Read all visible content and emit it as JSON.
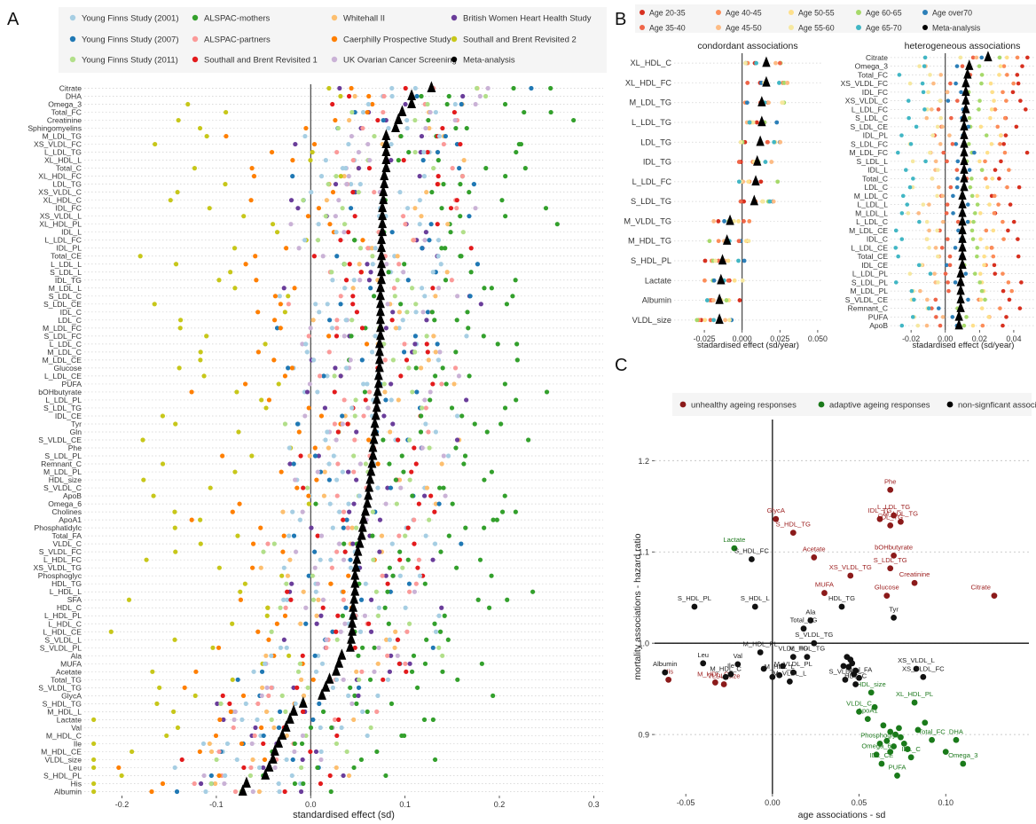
{
  "chart_data": [
    {
      "panel": "A",
      "type": "scatter",
      "xlabel": "standardised effect (sd)",
      "ylabel": "",
      "xlim": [
        -0.24,
        0.31
      ],
      "xticks": [
        -0.2,
        -0.1,
        0.0,
        0.1,
        0.2,
        0.3
      ],
      "xtick_labels": [
        "-0.2",
        "-0.1",
        "0.0",
        "0.1",
        "0.2",
        "0.3"
      ],
      "legend_position": "top",
      "legend": [
        {
          "name": "Young Finns Study (2001)",
          "color": "#a6cee3"
        },
        {
          "name": "ALSPAC-mothers",
          "color": "#33a02c"
        },
        {
          "name": "Whitehall II",
          "color": "#fdbf6f"
        },
        {
          "name": "British Women Heart Health Study",
          "color": "#6a3d9a"
        },
        {
          "name": "Young Finns Study (2007)",
          "color": "#1f78b4"
        },
        {
          "name": "ALSPAC-partners",
          "color": "#fb9a99"
        },
        {
          "name": "Caerphilly Prospective Study",
          "color": "#ff7f00"
        },
        {
          "name": "Southall and Brent Revisited 2",
          "color": "#c7c71a"
        },
        {
          "name": "Young Finns Study (2011)",
          "color": "#b2df8a"
        },
        {
          "name": "Southall and Brent Revisited 1",
          "color": "#e31a1c"
        },
        {
          "name": "UK Ovarian Cancer Screening",
          "color": "#cab2d6"
        },
        {
          "name": "Meta-analysis",
          "color": "#000000"
        }
      ],
      "categories": [
        "Citrate",
        "DHA",
        "Omega_3",
        "Total_FC",
        "Creatinine",
        "Sphingomyelins",
        "M_LDL_TG",
        "XS_VLDL_FC",
        "L_LDL_TG",
        "XL_HDL_L",
        "Total_C",
        "XL_HDL_FC",
        "LDL_TG",
        "XS_VLDL_C",
        "XL_HDL_C",
        "IDL_FC",
        "XS_VLDL_L",
        "XL_HDL_PL",
        "IDL_L",
        "L_LDL_FC",
        "IDL_PL",
        "Total_CE",
        "L_LDL_L",
        "S_LDL_L",
        "IDL_TG",
        "M_LDL_L",
        "S_LDL_C",
        "S_LDL_CE",
        "IDL_C",
        "LDL_C",
        "M_LDL_FC",
        "S_LDL_FC",
        "L_LDL_C",
        "M_LDL_C",
        "M_LDL_CE",
        "Glucose",
        "L_LDL_CE",
        "PUFA",
        "bOHbutyrate",
        "L_LDL_PL",
        "S_LDL_TG",
        "IDL_CE",
        "Tyr",
        "Gln",
        "S_VLDL_CE",
        "Phe",
        "S_LDL_PL",
        "Remnant_C",
        "M_LDL_PL",
        "HDL_size",
        "S_VLDL_C",
        "ApoB",
        "Omega_6",
        "Cholines",
        "ApoA1",
        "Phosphatidylc",
        "Total_FA",
        "VLDL_C",
        "S_VLDL_FC",
        "L_HDL_FC",
        "XS_VLDL_TG",
        "Phosphoglyc",
        "HDL_TG",
        "L_HDL_L",
        "SFA",
        "HDL_C",
        "L_HDL_PL",
        "L_HDL_C",
        "L_HDL_CE",
        "S_VLDL_L",
        "S_VLDL_PL",
        "Ala",
        "MUFA",
        "Acetate",
        "Total_TG",
        "S_VLDL_TG",
        "GlycA",
        "S_HDL_TG",
        "M_HDL_L",
        "Lactate",
        "Val",
        "M_HDL_C",
        "Ile",
        "M_HDL_CE",
        "VLDL_size",
        "Leu",
        "S_HDL_PL",
        "His",
        "Albumin"
      ],
      "meta_analysis": [
        0.128,
        0.107,
        0.107,
        0.097,
        0.093,
        0.09,
        0.08,
        0.08,
        0.08,
        0.08,
        0.08,
        0.078,
        0.078,
        0.077,
        0.077,
        0.076,
        0.076,
        0.076,
        0.076,
        0.075,
        0.075,
        0.075,
        0.075,
        0.075,
        0.075,
        0.074,
        0.074,
        0.074,
        0.074,
        0.074,
        0.074,
        0.074,
        0.073,
        0.073,
        0.073,
        0.073,
        0.072,
        0.072,
        0.071,
        0.07,
        0.07,
        0.069,
        0.068,
        0.068,
        0.067,
        0.066,
        0.066,
        0.065,
        0.064,
        0.063,
        0.062,
        0.061,
        0.06,
        0.058,
        0.056,
        0.055,
        0.054,
        0.052,
        0.05,
        0.049,
        0.048,
        0.047,
        0.047,
        0.047,
        0.046,
        0.045,
        0.045,
        0.044,
        0.044,
        0.043,
        0.042,
        0.033,
        0.03,
        0.027,
        0.02,
        0.016,
        0.012,
        -0.008,
        -0.018,
        -0.022,
        -0.026,
        -0.03,
        -0.034,
        -0.038,
        -0.04,
        -0.044,
        -0.048,
        -0.068,
        -0.072
      ]
    },
    {
      "panel": "B",
      "type": "scatter",
      "legend_position": "top",
      "legend": [
        {
          "name": "Age 20-35",
          "color": "#d7301f"
        },
        {
          "name": "Age 40-45",
          "color": "#fc8d59"
        },
        {
          "name": "Age 50-55",
          "color": "#fee08b"
        },
        {
          "name": "Age 60-65",
          "color": "#a6d96a"
        },
        {
          "name": "Age over70",
          "color": "#2c7fb8"
        },
        {
          "name": "Age 35-40",
          "color": "#ef6548"
        },
        {
          "name": "Age 45-50",
          "color": "#fdbb84"
        },
        {
          "name": "Age 55-60",
          "color": "#f6e8a0"
        },
        {
          "name": "Age 65-70",
          "color": "#41b6c4"
        },
        {
          "name": "Meta-analysis",
          "color": "#000000"
        }
      ],
      "subplots": [
        {
          "title": "condordant associations",
          "xlabel": "stadardised effect (sd/year)",
          "xlim": [
            -0.045,
            0.053
          ],
          "xticks": [
            -0.025,
            0.0,
            0.025,
            0.05
          ],
          "xtick_labels": [
            "-0.025",
            "0.000",
            "0.025",
            "0.050"
          ],
          "categories": [
            "XL_HDL_C",
            "XL_HDL_FC",
            "M_LDL_TG",
            "L_LDL_TG",
            "LDL_TG",
            "IDL_TG",
            "L_LDL_FC",
            "S_LDL_TG",
            "M_VLDL_TG",
            "M_HDL_TG",
            "S_HDL_PL",
            "Lactate",
            "Albumin",
            "VLDL_size"
          ],
          "meta_analysis": [
            0.016,
            0.016,
            0.013,
            0.013,
            0.012,
            0.01,
            0.009,
            0.008,
            -0.008,
            -0.01,
            -0.013,
            -0.014,
            -0.015,
            -0.015
          ]
        },
        {
          "title": "heterogeneous associations",
          "xlabel": "stadardised effect (sd/year)",
          "xlim": [
            -0.032,
            0.053
          ],
          "xticks": [
            -0.02,
            0.0,
            0.02,
            0.04
          ],
          "xtick_labels": [
            "-0.02",
            "0.00",
            "0.02",
            "0.04"
          ],
          "categories": [
            "Citrate",
            "Omega_3",
            "Total_FC",
            "XS_VLDL_FC",
            "IDL_FC",
            "XS_VLDL_C",
            "L_LDL_FC",
            "S_LDL_C",
            "S_LDL_CE",
            "IDL_PL",
            "S_LDL_FC",
            "M_LDL_FC",
            "S_LDL_L",
            "IDL_L",
            "Total_C",
            "LDL_C",
            "M_LDL_C",
            "L_LDL_L",
            "M_LDL_L",
            "L_LDL_C",
            "M_LDL_CE",
            "IDL_C",
            "L_LDL_CE",
            "Total_CE",
            "IDL_CE",
            "L_LDL_PL",
            "S_LDL_PL",
            "M_LDL_PL",
            "S_VLDL_CE",
            "Remnant_C",
            "PUFA",
            "ApoB"
          ],
          "meta_analysis": [
            0.025,
            0.014,
            0.013,
            0.012,
            0.012,
            0.012,
            0.012,
            0.011,
            0.011,
            0.011,
            0.011,
            0.011,
            0.011,
            0.011,
            0.011,
            0.011,
            0.01,
            0.01,
            0.01,
            0.01,
            0.01,
            0.01,
            0.01,
            0.01,
            0.01,
            0.009,
            0.009,
            0.009,
            0.009,
            0.009,
            0.008,
            0.008
          ]
        }
      ]
    },
    {
      "panel": "C",
      "type": "scatter",
      "xlabel": "age associations - sd",
      "ylabel": "mortality associations - hazard ratio",
      "xlim": [
        -0.068,
        0.148
      ],
      "ylim": [
        0.835,
        1.245
      ],
      "xticks": [
        -0.05,
        0.0,
        0.05,
        0.1
      ],
      "xtick_labels": [
        "-0.05",
        "0.00",
        "0.05",
        "0.10"
      ],
      "yticks": [
        0.9,
        1.0,
        1.1,
        1.2
      ],
      "ytick_labels": [
        "0.9",
        "1.0",
        "1.1",
        "1.2"
      ],
      "legend_position": "top",
      "legend": [
        {
          "name": "unhealthy ageing responses",
          "color": "#8b1a1a"
        },
        {
          "name": "adaptive ageing responses",
          "color": "#1a7a1a"
        },
        {
          "name": "non-signficant associations",
          "color": "#000000"
        }
      ],
      "points": [
        {
          "label": "Phe",
          "x": 0.068,
          "y": 1.168,
          "group": "unhealthy"
        },
        {
          "label": "GlycA",
          "x": 0.002,
          "y": 1.136,
          "group": "unhealthy"
        },
        {
          "label": "IDL_TG",
          "x": 0.062,
          "y": 1.136,
          "group": "unhealthy"
        },
        {
          "label": "L_LDL_TG",
          "x": 0.07,
          "y": 1.14,
          "group": "unhealthy"
        },
        {
          "label": "M_LDL_TG",
          "x": 0.074,
          "y": 1.133,
          "group": "unhealthy"
        },
        {
          "label": "LDL_TG",
          "x": 0.068,
          "y": 1.129,
          "group": "unhealthy"
        },
        {
          "label": "S_HDL_TG",
          "x": 0.012,
          "y": 1.121,
          "group": "unhealthy"
        },
        {
          "label": "Acetate",
          "x": 0.024,
          "y": 1.094,
          "group": "unhealthy"
        },
        {
          "label": "bOHbutyrate",
          "x": 0.07,
          "y": 1.096,
          "group": "unhealthy"
        },
        {
          "label": "S_LDL_TG",
          "x": 0.068,
          "y": 1.082,
          "group": "unhealthy"
        },
        {
          "label": "XS_VLDL_TG",
          "x": 0.045,
          "y": 1.074,
          "group": "unhealthy"
        },
        {
          "label": "Creatinine",
          "x": 0.082,
          "y": 1.066,
          "group": "unhealthy"
        },
        {
          "label": "MUFA",
          "x": 0.03,
          "y": 1.055,
          "group": "unhealthy"
        },
        {
          "label": "Glucose",
          "x": 0.066,
          "y": 1.052,
          "group": "unhealthy"
        },
        {
          "label": "Citrate",
          "x": 0.128,
          "y": 1.052,
          "group": "unhealthy"
        },
        {
          "label": "His",
          "x": -0.06,
          "y": 0.96,
          "group": "unhealthy"
        },
        {
          "label": "M_HDL_CE",
          "x": -0.033,
          "y": 0.957,
          "group": "unhealthy"
        },
        {
          "label": "VLDL_size",
          "x": -0.028,
          "y": 0.955,
          "group": "unhealthy"
        },
        {
          "label": "Lactate",
          "x": -0.022,
          "y": 1.104,
          "group": "adaptive"
        },
        {
          "label": "HDL_size",
          "x": 0.057,
          "y": 0.946,
          "group": "adaptive"
        },
        {
          "label": "XL_HDL_PL",
          "x": 0.082,
          "y": 0.935,
          "group": "adaptive"
        },
        {
          "label": "VLDL_C",
          "x": 0.05,
          "y": 0.925,
          "group": "adaptive"
        },
        {
          "label": "ApoA1",
          "x": 0.055,
          "y": 0.917,
          "group": "adaptive"
        },
        {
          "label": "Phosphoglyc",
          "x": 0.062,
          "y": 0.89,
          "group": "adaptive"
        },
        {
          "label": "Total_FC",
          "x": 0.092,
          "y": 0.894,
          "group": "adaptive"
        },
        {
          "label": "DHA",
          "x": 0.106,
          "y": 0.894,
          "group": "adaptive"
        },
        {
          "label": "Omega_6",
          "x": 0.06,
          "y": 0.878,
          "group": "adaptive"
        },
        {
          "label": "IDL_C",
          "x": 0.08,
          "y": 0.875,
          "group": "adaptive"
        },
        {
          "label": "Omega_3",
          "x": 0.11,
          "y": 0.868,
          "group": "adaptive"
        },
        {
          "label": "IDL_CE",
          "x": 0.063,
          "y": 0.868,
          "group": "adaptive"
        },
        {
          "label": "PUFA",
          "x": 0.072,
          "y": 0.855,
          "group": "adaptive"
        },
        {
          "label": "",
          "x": 0.064,
          "y": 0.91,
          "group": "adaptive"
        },
        {
          "label": "",
          "x": 0.068,
          "y": 0.903,
          "group": "adaptive"
        },
        {
          "label": "",
          "x": 0.071,
          "y": 0.9,
          "group": "adaptive"
        },
        {
          "label": "",
          "x": 0.074,
          "y": 0.897,
          "group": "adaptive"
        },
        {
          "label": "",
          "x": 0.066,
          "y": 0.893,
          "group": "adaptive"
        },
        {
          "label": "",
          "x": 0.076,
          "y": 0.89,
          "group": "adaptive"
        },
        {
          "label": "",
          "x": 0.07,
          "y": 0.887,
          "group": "adaptive"
        },
        {
          "label": "",
          "x": 0.078,
          "y": 0.884,
          "group": "adaptive"
        },
        {
          "label": "",
          "x": 0.068,
          "y": 0.881,
          "group": "adaptive"
        },
        {
          "label": "",
          "x": 0.084,
          "y": 0.905,
          "group": "adaptive"
        },
        {
          "label": "",
          "x": 0.088,
          "y": 0.913,
          "group": "adaptive"
        },
        {
          "label": "",
          "x": 0.073,
          "y": 0.907,
          "group": "adaptive"
        },
        {
          "label": "",
          "x": 0.1,
          "y": 0.881,
          "group": "adaptive"
        },
        {
          "label": "",
          "x": 0.059,
          "y": 0.93,
          "group": "adaptive"
        },
        {
          "label": "S_HDL_FC",
          "x": -0.012,
          "y": 1.092,
          "group": "nonsig"
        },
        {
          "label": "S_HDL_PL",
          "x": -0.045,
          "y": 1.04,
          "group": "nonsig"
        },
        {
          "label": "S_HDL_L",
          "x": -0.01,
          "y": 1.04,
          "group": "nonsig"
        },
        {
          "label": "HDL_TG",
          "x": 0.04,
          "y": 1.04,
          "group": "nonsig"
        },
        {
          "label": "Ala",
          "x": 0.022,
          "y": 1.025,
          "group": "nonsig"
        },
        {
          "label": "Total_TG",
          "x": 0.018,
          "y": 1.016,
          "group": "nonsig"
        },
        {
          "label": "Tyr",
          "x": 0.07,
          "y": 1.028,
          "group": "nonsig"
        },
        {
          "label": "M_HDL_PL",
          "x": -0.007,
          "y": 0.99,
          "group": "nonsig"
        },
        {
          "label": "S_VLDL_TG",
          "x": 0.024,
          "y": 1.0,
          "group": "nonsig"
        },
        {
          "label": "VLDL_TG",
          "x": 0.012,
          "y": 0.985,
          "group": "nonsig"
        },
        {
          "label": "M_HDL_TG",
          "x": 0.02,
          "y": 0.985,
          "group": "nonsig"
        },
        {
          "label": "Val",
          "x": -0.02,
          "y": 0.977,
          "group": "nonsig"
        },
        {
          "label": "Ile",
          "x": -0.024,
          "y": 0.966,
          "group": "nonsig"
        },
        {
          "label": "M_HDL_L",
          "x": 0.004,
          "y": 0.965,
          "group": "nonsig"
        },
        {
          "label": "M_VLDL_PL",
          "x": 0.012,
          "y": 0.968,
          "group": "nonsig"
        },
        {
          "label": "Albumin",
          "x": -0.062,
          "y": 0.968,
          "group": "nonsig"
        },
        {
          "label": "Leu",
          "x": -0.04,
          "y": 0.978,
          "group": "nonsig"
        },
        {
          "label": "M_HDL_C",
          "x": -0.027,
          "y": 0.963,
          "group": "nonsig"
        },
        {
          "label": "M_VLDL_L",
          "x": 0.01,
          "y": 0.958,
          "group": "nonsig"
        },
        {
          "label": "Total_FA",
          "x": 0.05,
          "y": 0.962,
          "group": "nonsig"
        },
        {
          "label": "S_VLDL_L",
          "x": 0.042,
          "y": 0.96,
          "group": "nonsig"
        },
        {
          "label": "HDL_C",
          "x": 0.048,
          "y": 0.955,
          "group": "nonsig"
        },
        {
          "label": "XS_VLDL_L",
          "x": 0.083,
          "y": 0.972,
          "group": "nonsig"
        },
        {
          "label": "XS_VLDL_FC",
          "x": 0.087,
          "y": 0.963,
          "group": "nonsig"
        },
        {
          "label": "",
          "x": 0.043,
          "y": 0.985,
          "group": "nonsig"
        },
        {
          "label": "",
          "x": 0.045,
          "y": 0.982,
          "group": "nonsig"
        },
        {
          "label": "",
          "x": 0.046,
          "y": 0.978,
          "group": "nonsig"
        },
        {
          "label": "",
          "x": 0.044,
          "y": 0.974,
          "group": "nonsig"
        },
        {
          "label": "",
          "x": 0.048,
          "y": 0.97,
          "group": "nonsig"
        },
        {
          "label": "",
          "x": 0.041,
          "y": 0.975,
          "group": "nonsig"
        },
        {
          "label": "",
          "x": 0.047,
          "y": 0.966,
          "group": "nonsig"
        },
        {
          "label": "",
          "x": -0.005,
          "y": 0.972,
          "group": "nonsig"
        },
        {
          "label": "",
          "x": 0.006,
          "y": 0.975,
          "group": "nonsig"
        },
        {
          "label": "",
          "x": 0.0,
          "y": 0.963,
          "group": "nonsig"
        }
      ]
    }
  ]
}
